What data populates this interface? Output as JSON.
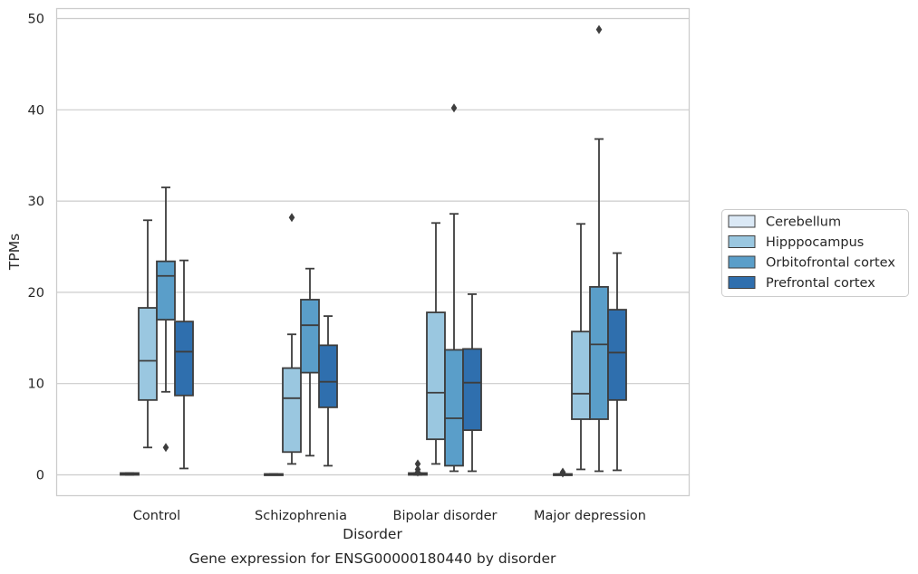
{
  "chart_data": {
    "type": "box",
    "xlabel": "Disorder",
    "ylabel": "TPMs",
    "caption": "Gene expression for ENSG00000180440 by disorder",
    "ylim": [
      -2.2,
      51.2
    ],
    "yticks": [
      0,
      10,
      20,
      30,
      40,
      50
    ],
    "grid": "horizontal",
    "legend_position": "right",
    "categories": [
      "Control",
      "Schizophrenia",
      "Bipolar disorder",
      "Major depression"
    ],
    "series": [
      {
        "name": "Cerebellum",
        "color": "#dbe9f6",
        "boxes": [
          {
            "whisker_low": 0.0,
            "q1": 0.0,
            "median": 0.1,
            "q3": 0.2,
            "whisker_high": 0.2,
            "outliers": []
          },
          {
            "whisker_low": 0.0,
            "q1": 0.0,
            "median": 0.05,
            "q3": 0.1,
            "whisker_high": 0.1,
            "outliers": []
          },
          {
            "whisker_low": 0.0,
            "q1": 0.0,
            "median": 0.1,
            "q3": 0.2,
            "whisker_high": 0.2,
            "outliers": [
              0.3,
              0.6,
              1.2
            ]
          },
          {
            "whisker_low": 0.0,
            "q1": 0.0,
            "median": 0.05,
            "q3": 0.1,
            "whisker_high": 0.1,
            "outliers": [
              0.2,
              0.3
            ]
          }
        ]
      },
      {
        "name": "Hipppocampus",
        "color": "#9ac7e0",
        "boxes": [
          {
            "whisker_low": 3.0,
            "q1": 8.2,
            "median": 12.5,
            "q3": 18.3,
            "whisker_high": 27.9,
            "outliers": []
          },
          {
            "whisker_low": 1.2,
            "q1": 2.5,
            "median": 8.4,
            "q3": 11.7,
            "whisker_high": 15.4,
            "outliers": [
              28.2
            ]
          },
          {
            "whisker_low": 1.2,
            "q1": 3.9,
            "median": 9.0,
            "q3": 17.8,
            "whisker_high": 27.6,
            "outliers": []
          },
          {
            "whisker_low": 0.6,
            "q1": 6.1,
            "median": 8.9,
            "q3": 15.7,
            "whisker_high": 27.5,
            "outliers": []
          }
        ]
      },
      {
        "name": "Orbitofrontal cortex",
        "color": "#5a9ec9",
        "boxes": [
          {
            "whisker_low": 9.1,
            "q1": 17.0,
            "median": 21.8,
            "q3": 23.4,
            "whisker_high": 31.5,
            "outliers": [
              3.0
            ]
          },
          {
            "whisker_low": 2.1,
            "q1": 11.2,
            "median": 16.4,
            "q3": 19.2,
            "whisker_high": 22.6,
            "outliers": []
          },
          {
            "whisker_low": 0.4,
            "q1": 1.0,
            "median": 6.2,
            "q3": 13.7,
            "whisker_high": 28.6,
            "outliers": [
              40.2
            ]
          },
          {
            "whisker_low": 0.4,
            "q1": 6.1,
            "median": 14.3,
            "q3": 20.6,
            "whisker_high": 36.8,
            "outliers": [
              48.8
            ]
          }
        ]
      },
      {
        "name": "Prefrontal cortex",
        "color": "#2f6fae",
        "boxes": [
          {
            "whisker_low": 0.7,
            "q1": 8.7,
            "median": 13.5,
            "q3": 16.8,
            "whisker_high": 23.5,
            "outliers": []
          },
          {
            "whisker_low": 1.0,
            "q1": 7.4,
            "median": 10.2,
            "q3": 14.2,
            "whisker_high": 17.4,
            "outliers": []
          },
          {
            "whisker_low": 0.4,
            "q1": 4.9,
            "median": 10.1,
            "q3": 13.8,
            "whisker_high": 19.8,
            "outliers": []
          },
          {
            "whisker_low": 0.5,
            "q1": 8.2,
            "median": 13.4,
            "q3": 18.1,
            "whisker_high": 24.3,
            "outliers": []
          }
        ]
      }
    ]
  }
}
